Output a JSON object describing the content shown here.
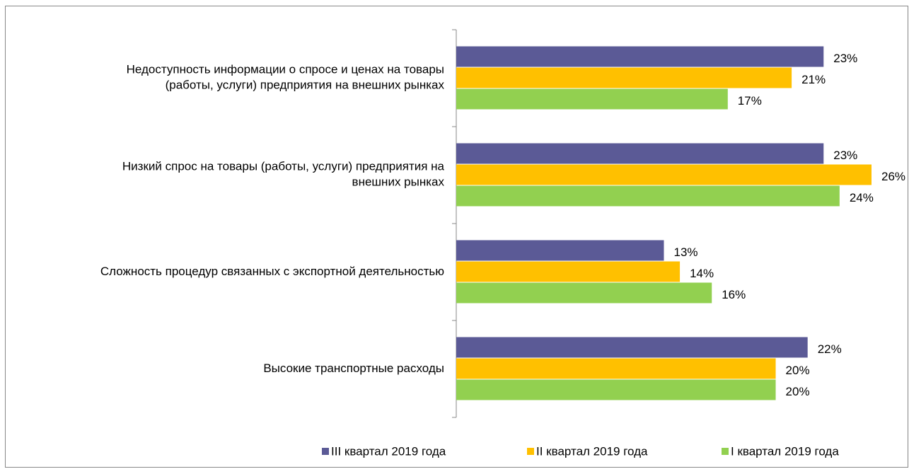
{
  "chart_data": {
    "type": "barh",
    "categories": [
      "Недоступность информации о спросе и ценах на товары\n(работы, услуги) предприятия на внешних рынках",
      "Низкий спрос на товары (работы, услуги) предприятия на\nвнешних рынках",
      "Сложность процедур связанных с экспортной деятельностью",
      "Высокие транспортные расходы"
    ],
    "series": [
      {
        "name": "III квартал 2019 года",
        "color": "#5b5a96",
        "values": [
          23,
          23,
          13,
          22
        ],
        "value_labels": [
          "23%",
          "23%",
          "13%",
          "22%"
        ]
      },
      {
        "name": "II квартал 2019 года",
        "color": "#ffc000",
        "values": [
          21,
          26,
          14,
          20
        ],
        "value_labels": [
          "21%",
          "26%",
          "14%",
          "20%"
        ]
      },
      {
        "name": "I квартал 2019 года",
        "color": "#92d050",
        "values": [
          17,
          24,
          16,
          20
        ],
        "value_labels": [
          "17%",
          "24%",
          "16%",
          "20%"
        ]
      }
    ],
    "legend": "bottom"
  }
}
